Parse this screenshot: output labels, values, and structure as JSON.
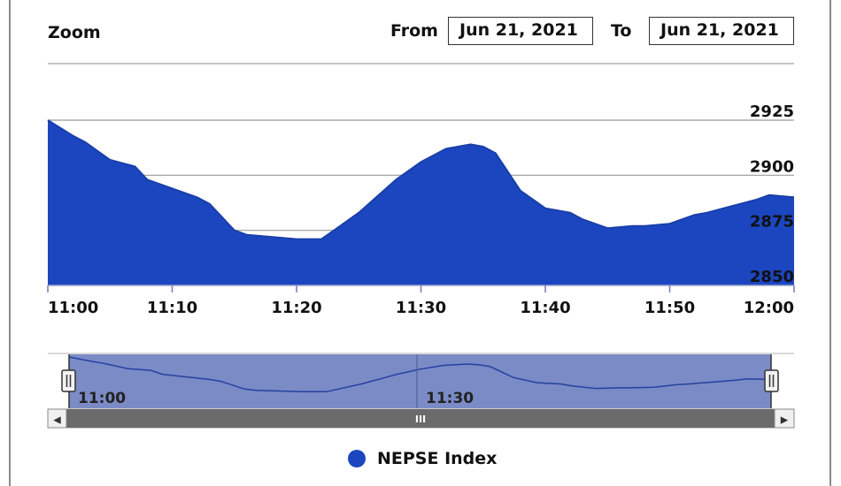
{
  "controls": {
    "zoom_label": "Zoom",
    "from_label": "From",
    "from_value": "Jun 21, 2021",
    "to_label": "To",
    "to_value": "Jun 21, 2021"
  },
  "navigator": {
    "tick_labels": [
      "11:00",
      "11:30"
    ],
    "grip_glyph": "III",
    "left_arrow": "◀",
    "right_arrow": "▶"
  },
  "colors": {
    "series_fill": "#1b46c0",
    "series_line": "#1a3fa8",
    "navigator_fill": "#7b8bc6",
    "navigator_line": "#2641a0",
    "scrollbar": "#6b6b6b"
  },
  "chart_data": {
    "type": "area",
    "title": "",
    "xlabel": "",
    "ylabel": "",
    "x_ticks": [
      "11:00",
      "11:10",
      "11:20",
      "11:30",
      "11:40",
      "11:50",
      "12:00"
    ],
    "y_ticks": [
      2850,
      2875,
      2900,
      2925
    ],
    "ylim": [
      2850,
      2925
    ],
    "xlim": [
      "11:00",
      "12:00"
    ],
    "grid": true,
    "legend_position": "bottom-center",
    "series": [
      {
        "name": "NEPSE Index",
        "x": [
          "11:00",
          "11:02",
          "11:03",
          "11:05",
          "11:07",
          "11:08",
          "11:10",
          "11:12",
          "11:13",
          "11:15",
          "11:16",
          "11:18",
          "11:20",
          "11:21",
          "11:22",
          "11:23",
          "11:25",
          "11:27",
          "11:28",
          "11:30",
          "11:32",
          "11:33",
          "11:34",
          "11:35",
          "11:36",
          "11:38",
          "11:40",
          "11:42",
          "11:43",
          "11:45",
          "11:47",
          "11:48",
          "11:50",
          "11:52",
          "11:53",
          "11:55",
          "11:57",
          "11:58",
          "12:00"
        ],
        "values": [
          2925,
          2918,
          2915,
          2907,
          2904,
          2898,
          2894,
          2890,
          2887,
          2875,
          2873,
          2872,
          2871,
          2871,
          2871,
          2875,
          2883,
          2893,
          2898,
          2906,
          2912,
          2913,
          2914,
          2913,
          2910,
          2893,
          2885,
          2883,
          2880,
          2876,
          2877,
          2877,
          2878,
          2882,
          2883,
          2886,
          2889,
          2891,
          2890
        ]
      }
    ]
  },
  "legend": {
    "label": "NEPSE Index"
  }
}
